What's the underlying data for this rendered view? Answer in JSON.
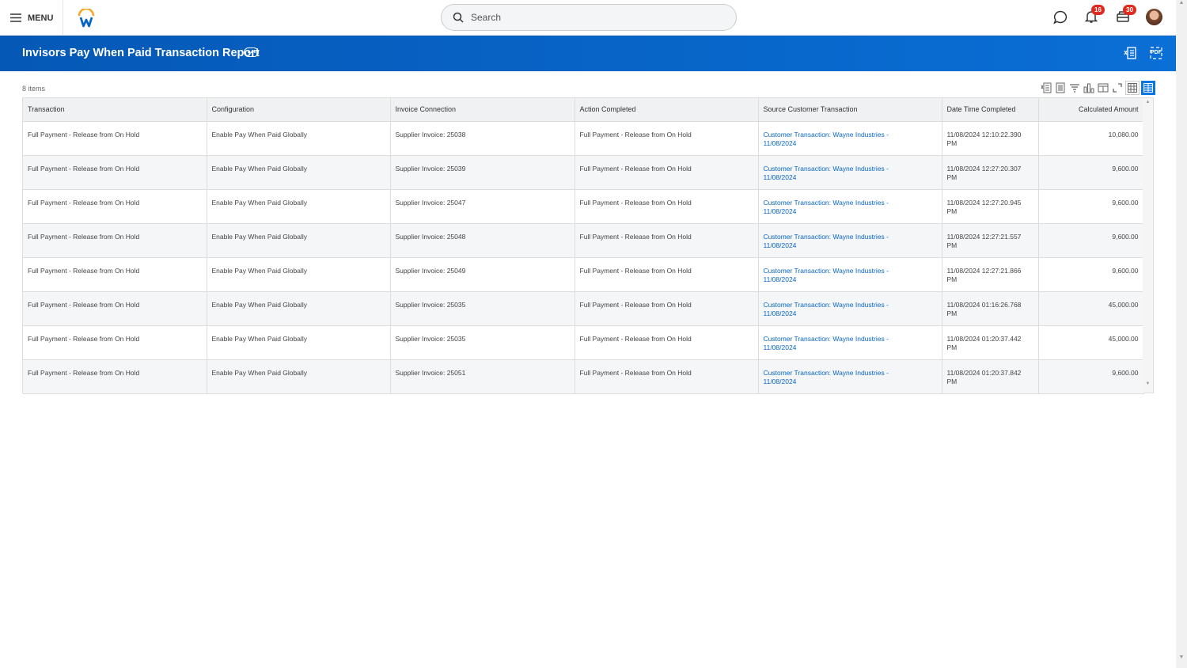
{
  "topbar": {
    "menu_label": "MENU",
    "search_placeholder": "Search",
    "notifications_count": "16",
    "inbox_count": "30"
  },
  "header": {
    "title": "Invisors Pay When Paid Transaction Report",
    "excel_icon": "excel-export-icon",
    "pdf_label": "PDF"
  },
  "grid": {
    "item_count": "8 items",
    "columns": [
      "Transaction",
      "Configuration",
      "Invoice Connection",
      "Action Completed",
      "Source Customer Transaction",
      "Date Time Completed",
      "Calculated Amount"
    ],
    "rows": [
      [
        "Full Payment - Release from On Hold",
        "Enable Pay When Paid Globally",
        "Supplier Invoice: 25038",
        "Full Payment - Release from On Hold",
        "Customer Transaction: Wayne Industries - 11/08/2024",
        "11/08/2024 12:10:22.390 PM",
        "10,080.00"
      ],
      [
        "Full Payment - Release from On Hold",
        "Enable Pay When Paid Globally",
        "Supplier Invoice: 25039",
        "Full Payment - Release from On Hold",
        "Customer Transaction: Wayne Industries - 11/08/2024",
        "11/08/2024 12:27:20.307 PM",
        "9,600.00"
      ],
      [
        "Full Payment - Release from On Hold",
        "Enable Pay When Paid Globally",
        "Supplier Invoice: 25047",
        "Full Payment - Release from On Hold",
        "Customer Transaction: Wayne Industries - 11/08/2024",
        "11/08/2024 12:27:20.945 PM",
        "9,600.00"
      ],
      [
        "Full Payment - Release from On Hold",
        "Enable Pay When Paid Globally",
        "Supplier Invoice: 25048",
        "Full Payment - Release from On Hold",
        "Customer Transaction: Wayne Industries - 11/08/2024",
        "11/08/2024 12:27:21.557 PM",
        "9,600.00"
      ],
      [
        "Full Payment - Release from On Hold",
        "Enable Pay When Paid Globally",
        "Supplier Invoice: 25049",
        "Full Payment - Release from On Hold",
        "Customer Transaction: Wayne Industries - 11/08/2024",
        "11/08/2024 12:27:21.866 PM",
        "9,600.00"
      ],
      [
        "Full Payment - Release from On Hold",
        "Enable Pay When Paid Globally",
        "Supplier Invoice: 25035",
        "Full Payment - Release from On Hold",
        "Customer Transaction: Wayne Industries - 11/08/2024",
        "11/08/2024 01:16:26.768 PM",
        "45,000.00"
      ],
      [
        "Full Payment - Release from On Hold",
        "Enable Pay When Paid Globally",
        "Supplier Invoice: 25035",
        "Full Payment - Release from On Hold",
        "Customer Transaction: Wayne Industries - 11/08/2024",
        "11/08/2024 01:20:37.442 PM",
        "45,000.00"
      ],
      [
        "Full Payment - Release from On Hold",
        "Enable Pay When Paid Globally",
        "Supplier Invoice: 25051",
        "Full Payment - Release from On Hold",
        "Customer Transaction: Wayne Industries - 11/08/2024",
        "11/08/2024 01:20:37.842 PM",
        "9,600.00"
      ]
    ]
  },
  "colors": {
    "brand_blue": "#0966c6",
    "link": "#0866c6",
    "badge": "#de2a1f",
    "logo_orange": "#f5a623"
  }
}
